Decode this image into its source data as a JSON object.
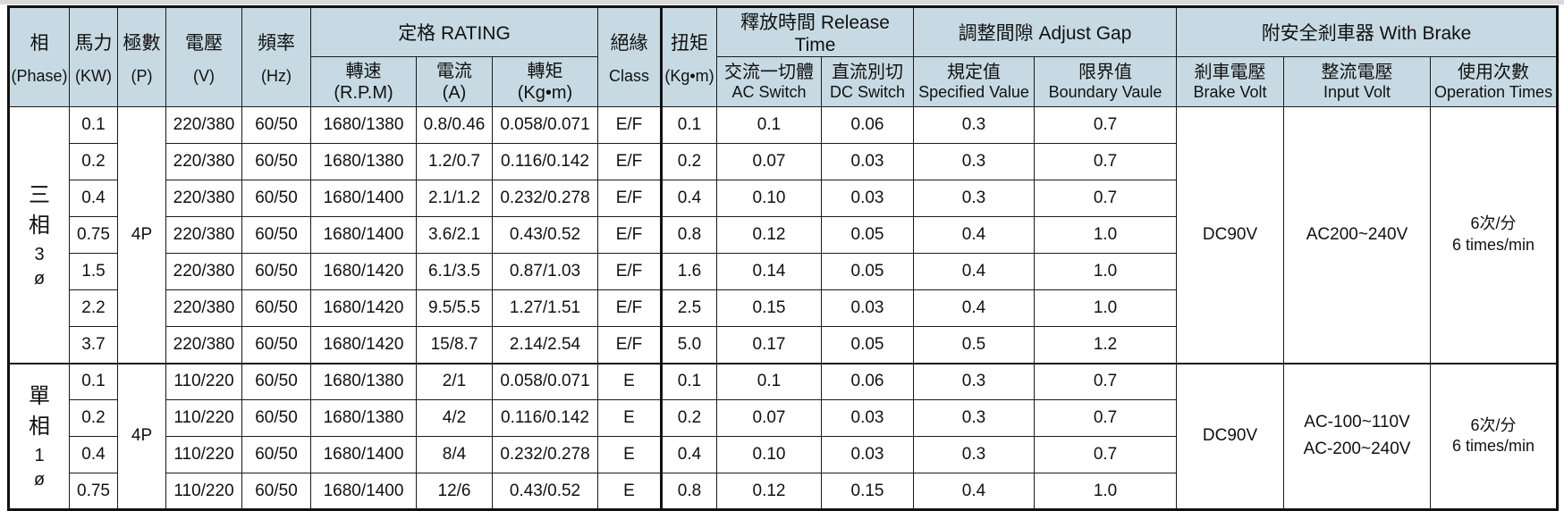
{
  "theme": {
    "header_bg": "#c7dae3",
    "border_color": "#1a1a1a",
    "text_color": "#111111",
    "page_bg": "#ffffff"
  },
  "header": {
    "phase": [
      "相",
      "(Phase)"
    ],
    "horsepower": [
      "馬力",
      "(KW)"
    ],
    "poles": [
      "極數",
      "(P)"
    ],
    "voltage": [
      "電壓",
      "(V)"
    ],
    "frequency": [
      "頻率",
      "(Hz)"
    ],
    "rating_group": "定格 RATING",
    "speed": [
      "轉速",
      "(R.P.M)"
    ],
    "current": [
      "電流",
      "(A)"
    ],
    "torque": [
      "轉矩",
      "(Kg•m)"
    ],
    "insulation": [
      "絕緣",
      "Class"
    ],
    "brake_torque": [
      "扭矩",
      "(Kg•m)"
    ],
    "release_group": "釋放時間 Release Time",
    "ac_switch": [
      "交流一切體",
      "AC Switch"
    ],
    "dc_switch": [
      "直流別切",
      "DC Switch"
    ],
    "gap_group": "調整間隙 Adjust Gap",
    "specified": [
      "規定值",
      "Specified Value"
    ],
    "boundary": [
      "限界值",
      "Boundary Vaule"
    ],
    "brake_group": "附安全剎車器 With Brake",
    "brake_volt": [
      "剎車電壓",
      "Brake Volt"
    ],
    "input_volt": [
      "整流電壓",
      "Input Volt"
    ],
    "op_times": [
      "使用次數",
      "Operation Times"
    ]
  },
  "sections": [
    {
      "phase_chars": [
        "三",
        "相",
        "3",
        "ø"
      ],
      "poles": "4P",
      "brake_volt": "DC90V",
      "input_volt": [
        "AC200~240V"
      ],
      "op_times": [
        "6次/分",
        "6 times/min"
      ],
      "rows": [
        {
          "kw": "0.1",
          "voltage": "220/380",
          "freq": "60/50",
          "rpm": "1680/1380",
          "amp": "0.8/0.46",
          "torque": "0.058/0.071",
          "cls": "E/F",
          "bt": "0.1",
          "ac": "0.1",
          "dc": "0.06",
          "sp": "0.3",
          "bd": "0.7"
        },
        {
          "kw": "0.2",
          "voltage": "220/380",
          "freq": "60/50",
          "rpm": "1680/1380",
          "amp": "1.2/0.7",
          "torque": "0.116/0.142",
          "cls": "E/F",
          "bt": "0.2",
          "ac": "0.07",
          "dc": "0.03",
          "sp": "0.3",
          "bd": "0.7"
        },
        {
          "kw": "0.4",
          "voltage": "220/380",
          "freq": "60/50",
          "rpm": "1680/1400",
          "amp": "2.1/1.2",
          "torque": "0.232/0.278",
          "cls": "E/F",
          "bt": "0.4",
          "ac": "0.10",
          "dc": "0.03",
          "sp": "0.3",
          "bd": "0.7"
        },
        {
          "kw": "0.75",
          "voltage": "220/380",
          "freq": "60/50",
          "rpm": "1680/1400",
          "amp": "3.6/2.1",
          "torque": "0.43/0.52",
          "cls": "E/F",
          "bt": "0.8",
          "ac": "0.12",
          "dc": "0.05",
          "sp": "0.4",
          "bd": "1.0"
        },
        {
          "kw": "1.5",
          "voltage": "220/380",
          "freq": "60/50",
          "rpm": "1680/1420",
          "amp": "6.1/3.5",
          "torque": "0.87/1.03",
          "cls": "E/F",
          "bt": "1.6",
          "ac": "0.14",
          "dc": "0.05",
          "sp": "0.4",
          "bd": "1.0"
        },
        {
          "kw": "2.2",
          "voltage": "220/380",
          "freq": "60/50",
          "rpm": "1680/1420",
          "amp": "9.5/5.5",
          "torque": "1.27/1.51",
          "cls": "E/F",
          "bt": "2.5",
          "ac": "0.15",
          "dc": "0.03",
          "sp": "0.4",
          "bd": "1.0"
        },
        {
          "kw": "3.7",
          "voltage": "220/380",
          "freq": "60/50",
          "rpm": "1680/1420",
          "amp": "15/8.7",
          "torque": "2.14/2.54",
          "cls": "E/F",
          "bt": "5.0",
          "ac": "0.17",
          "dc": "0.05",
          "sp": "0.5",
          "bd": "1.2"
        }
      ]
    },
    {
      "phase_chars": [
        "單",
        "相",
        "1",
        "ø"
      ],
      "poles": "4P",
      "brake_volt": "DC90V",
      "input_volt": [
        "AC-100~110V",
        "AC-200~240V"
      ],
      "op_times": [
        "6次/分",
        "6 times/min"
      ],
      "rows": [
        {
          "kw": "0.1",
          "voltage": "110/220",
          "freq": "60/50",
          "rpm": "1680/1380",
          "amp": "2/1",
          "torque": "0.058/0.071",
          "cls": "E",
          "bt": "0.1",
          "ac": "0.1",
          "dc": "0.06",
          "sp": "0.3",
          "bd": "0.7"
        },
        {
          "kw": "0.2",
          "voltage": "110/220",
          "freq": "60/50",
          "rpm": "1680/1380",
          "amp": "4/2",
          "torque": "0.116/0.142",
          "cls": "E",
          "bt": "0.2",
          "ac": "0.07",
          "dc": "0.03",
          "sp": "0.3",
          "bd": "0.7"
        },
        {
          "kw": "0.4",
          "voltage": "110/220",
          "freq": "60/50",
          "rpm": "1680/1400",
          "amp": "8/4",
          "torque": "0.232/0.278",
          "cls": "E",
          "bt": "0.4",
          "ac": "0.10",
          "dc": "0.03",
          "sp": "0.3",
          "bd": "0.7"
        },
        {
          "kw": "0.75",
          "voltage": "110/220",
          "freq": "60/50",
          "rpm": "1680/1400",
          "amp": "12/6",
          "torque": "0.43/0.52",
          "cls": "E",
          "bt": "0.8",
          "ac": "0.12",
          "dc": "0.15",
          "sp": "0.4",
          "bd": "1.0"
        }
      ]
    }
  ]
}
